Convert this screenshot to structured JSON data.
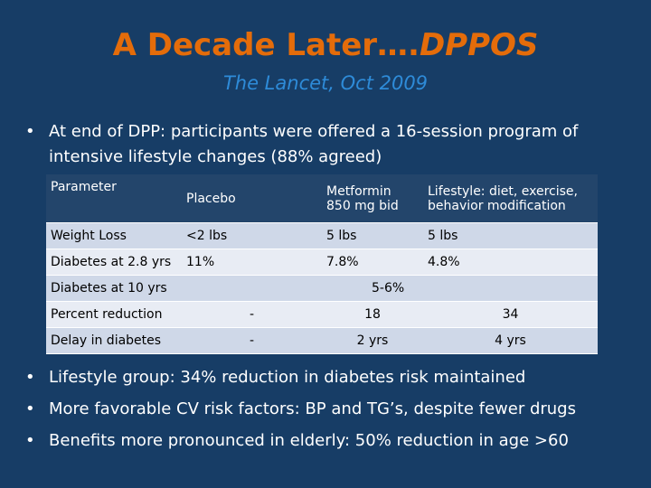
{
  "slide": {
    "title_main": "A Decade Later….",
    "title_italic": "DPPOS",
    "subtitle": "The Lancet, Oct 2009",
    "bullet_char": "•",
    "intro_text": "At end of DPP: participants were offered a 16-session program of intensive lifestyle changes (88% agreed)"
  },
  "table": {
    "header": {
      "parameter": "Parameter",
      "placebo": "Placebo",
      "metformin": "Metformin 850 mg bid",
      "lifestyle": "Lifestyle: diet, exercise, behavior modification"
    },
    "weight_loss": {
      "label": "Weight Loss",
      "placebo": "<2 lbs",
      "metformin": "5 lbs",
      "lifestyle": "5 lbs"
    },
    "diabetes_28": {
      "label": "Diabetes at 2.8 yrs",
      "placebo": "11%",
      "metformin": "7.8%",
      "lifestyle": "4.8%"
    },
    "diabetes_10": {
      "label": "Diabetes at 10 yrs",
      "value": "5-6%"
    },
    "percent_reduction": {
      "label": "Percent reduction",
      "placebo": "-",
      "metformin": "18",
      "lifestyle": "34"
    },
    "delay": {
      "label": "Delay in diabetes",
      "placebo": "-",
      "metformin": "2 yrs",
      "lifestyle": "4 yrs"
    }
  },
  "bullets": [
    "Lifestyle group: 34% reduction in diabetes risk maintained",
    "More favorable CV risk factors: BP and TG’s, despite fewer drugs",
    "Benefits more pronounced in elderly: 50% reduction in age >60"
  ]
}
